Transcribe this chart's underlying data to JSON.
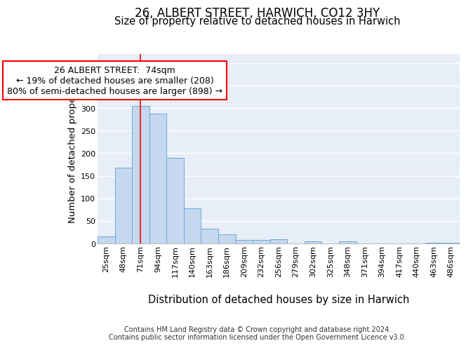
{
  "title": "26, ALBERT STREET, HARWICH, CO12 3HY",
  "subtitle": "Size of property relative to detached houses in Harwich",
  "xlabel_bottom": "Distribution of detached houses by size in Harwich",
  "ylabel": "Number of detached properties",
  "footer_line1": "Contains HM Land Registry data © Crown copyright and database right 2024.",
  "footer_line2": "Contains public sector information licensed under the Open Government Licence v3.0.",
  "categories": [
    "25sqm",
    "48sqm",
    "71sqm",
    "94sqm",
    "117sqm",
    "140sqm",
    "163sqm",
    "186sqm",
    "209sqm",
    "232sqm",
    "256sqm",
    "279sqm",
    "302sqm",
    "325sqm",
    "348sqm",
    "371sqm",
    "394sqm",
    "417sqm",
    "440sqm",
    "463sqm",
    "486sqm"
  ],
  "values": [
    15,
    168,
    305,
    288,
    190,
    78,
    32,
    20,
    8,
    8,
    9,
    0,
    5,
    0,
    4,
    0,
    0,
    0,
    0,
    2,
    2
  ],
  "bar_color": "#c5d8f0",
  "bar_edge_color": "#6aaad4",
  "background_color": "#e8eef8",
  "grid_color": "#ffffff",
  "annotation_line1": "26 ALBERT STREET:  74sqm",
  "annotation_line2": "← 19% of detached houses are smaller (208)",
  "annotation_line3": "80% of semi-detached houses are larger (898) →",
  "red_line_x": 2,
  "ylim": [
    0,
    420
  ],
  "yticks": [
    0,
    50,
    100,
    150,
    200,
    250,
    300,
    350,
    400
  ],
  "title_fontsize": 12,
  "subtitle_fontsize": 10.5,
  "tick_fontsize": 8,
  "ylabel_fontsize": 9.5,
  "xlabel_fontsize": 10.5,
  "annotation_fontsize": 9,
  "footer_fontsize": 7
}
